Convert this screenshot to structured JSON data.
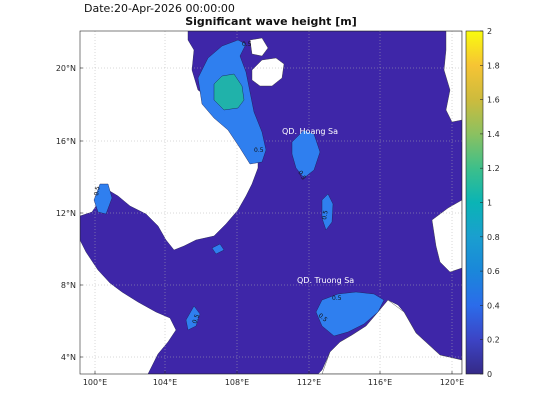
{
  "header": {
    "date_text": "Date:20-Apr-2026 00:00:00",
    "title": "Significant wave height [m]"
  },
  "map": {
    "lon_range": [
      99,
      121
    ],
    "lat_range": [
      3,
      22
    ],
    "lon_ticks": [
      "100°E",
      "104°E",
      "108°E",
      "112°E",
      "116°E",
      "120°E"
    ],
    "lat_ticks": [
      "20°N",
      "16°N",
      "12°N",
      "8°N",
      "4°N"
    ],
    "place_labels": {
      "hoang_sa": "QD. Hoang Sa",
      "truong_sa": "QD. Truong Sa"
    },
    "contour_level_label": "0.5",
    "grid": true
  },
  "colorbar": {
    "colormap": "parula",
    "range": [
      0,
      2
    ],
    "ticks": [
      "0",
      "0.2",
      "0.4",
      "0.6",
      "0.8",
      "1",
      "1.2",
      "1.4",
      "1.6",
      "1.8",
      "2"
    ]
  },
  "colors": {
    "background_value": "#3E26A8",
    "wave_0_5": "#2F7FEF",
    "wave_0_8": "#20B2AA",
    "land": "#ffffff"
  }
}
